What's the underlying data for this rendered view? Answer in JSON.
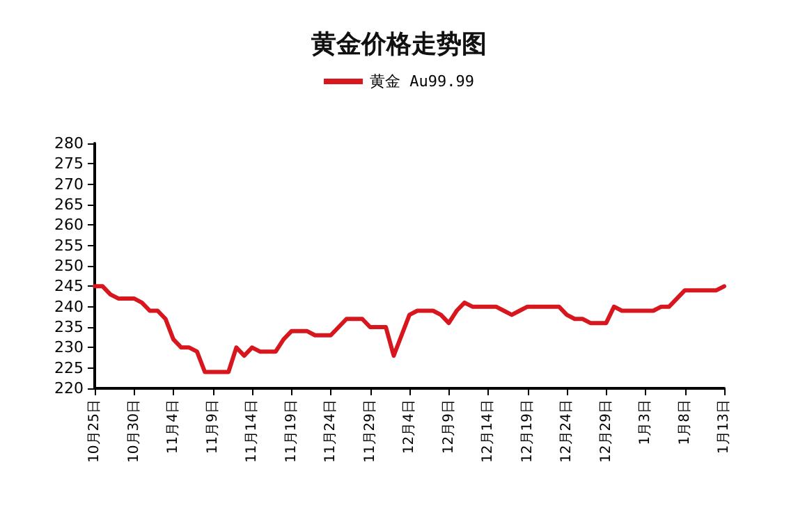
{
  "chart_data": {
    "type": "line",
    "title": "黄金价格走势图",
    "categories": [
      "10月25日",
      null,
      null,
      null,
      null,
      "10月30日",
      null,
      null,
      null,
      null,
      "11月4日",
      null,
      null,
      null,
      null,
      "11月9日",
      null,
      null,
      null,
      null,
      "11月14日",
      null,
      null,
      null,
      null,
      "11月19日",
      null,
      null,
      null,
      null,
      "11月24日",
      null,
      null,
      null,
      null,
      "11月29日",
      null,
      null,
      null,
      null,
      "12月4日",
      null,
      null,
      null,
      null,
      "12月9日",
      null,
      null,
      null,
      null,
      "12月14日",
      null,
      null,
      null,
      null,
      "12月19日",
      null,
      null,
      null,
      null,
      "12月24日",
      null,
      null,
      null,
      null,
      "12月29日",
      null,
      null,
      null,
      null,
      "1月3日",
      null,
      null,
      null,
      null,
      "1月8日",
      null,
      null,
      null,
      null,
      "1月13日"
    ],
    "series": [
      {
        "name": "黄金 Au99.99",
        "color": "#d7161e",
        "values": [
          245,
          245,
          243,
          242,
          242,
          242,
          241,
          239,
          239,
          237,
          232,
          230,
          230,
          229,
          224,
          224,
          224,
          224,
          230,
          228,
          230,
          229,
          229,
          229,
          232,
          234,
          234,
          234,
          233,
          233,
          233,
          235,
          237,
          237,
          237,
          235,
          235,
          235,
          228,
          233,
          238,
          239,
          239,
          239,
          238,
          236,
          239,
          241,
          240,
          240,
          240,
          240,
          239,
          238,
          239,
          240,
          240,
          240,
          240,
          240,
          238,
          237,
          237,
          236,
          236,
          236,
          240,
          239,
          239,
          239,
          239,
          239,
          240,
          240,
          242,
          244,
          244,
          244,
          244,
          244,
          245
        ]
      }
    ],
    "ylim": [
      220,
      280
    ],
    "yticks": [
      220,
      225,
      230,
      235,
      240,
      245,
      250,
      255,
      260,
      265,
      270,
      275,
      280
    ],
    "grid": false,
    "legend": "top",
    "marker": "none",
    "line_style": "solid"
  }
}
